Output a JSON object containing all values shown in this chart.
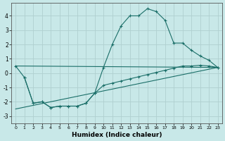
{
  "xlabel": "Humidex (Indice chaleur)",
  "xlim": [
    -0.5,
    23.5
  ],
  "ylim": [
    -3.5,
    4.9
  ],
  "yticks": [
    -3,
    -2,
    -1,
    0,
    1,
    2,
    3,
    4
  ],
  "xticks": [
    0,
    1,
    2,
    3,
    4,
    5,
    6,
    7,
    8,
    9,
    10,
    11,
    12,
    13,
    14,
    15,
    16,
    17,
    18,
    19,
    20,
    21,
    22,
    23
  ],
  "bg_color": "#c8e8e8",
  "line_color": "#1a6e68",
  "grid_color": "#b0d0d0",
  "line1_x": [
    0,
    1,
    2,
    3,
    4,
    5,
    6,
    7,
    8,
    9,
    10,
    11,
    12,
    13,
    14,
    15,
    16,
    17,
    18,
    19,
    20,
    21,
    22,
    23
  ],
  "line1_y": [
    0.5,
    -0.3,
    -2.1,
    -2.0,
    -2.4,
    -2.3,
    -2.3,
    -2.3,
    -2.1,
    -1.4,
    0.4,
    2.0,
    3.3,
    4.0,
    4.0,
    4.5,
    4.3,
    3.7,
    2.1,
    2.1,
    1.6,
    1.2,
    0.9,
    0.4
  ],
  "line2_x": [
    0,
    23
  ],
  "line2_y": [
    -2.5,
    0.4
  ],
  "line3_x": [
    0,
    23
  ],
  "line3_y": [
    0.5,
    0.4
  ],
  "line4_x": [
    1,
    2,
    3,
    4,
    5,
    6,
    7,
    8,
    9,
    10,
    11,
    12,
    13,
    14,
    15,
    16,
    17,
    18,
    19,
    20,
    21,
    22,
    23
  ],
  "line4_y": [
    -0.3,
    -2.1,
    -2.0,
    -2.4,
    -2.3,
    -2.3,
    -2.3,
    -2.1,
    -1.4,
    -0.85,
    -0.7,
    -0.55,
    -0.4,
    -0.25,
    -0.1,
    0.05,
    0.2,
    0.35,
    0.5,
    0.5,
    0.55,
    0.5,
    0.4
  ]
}
